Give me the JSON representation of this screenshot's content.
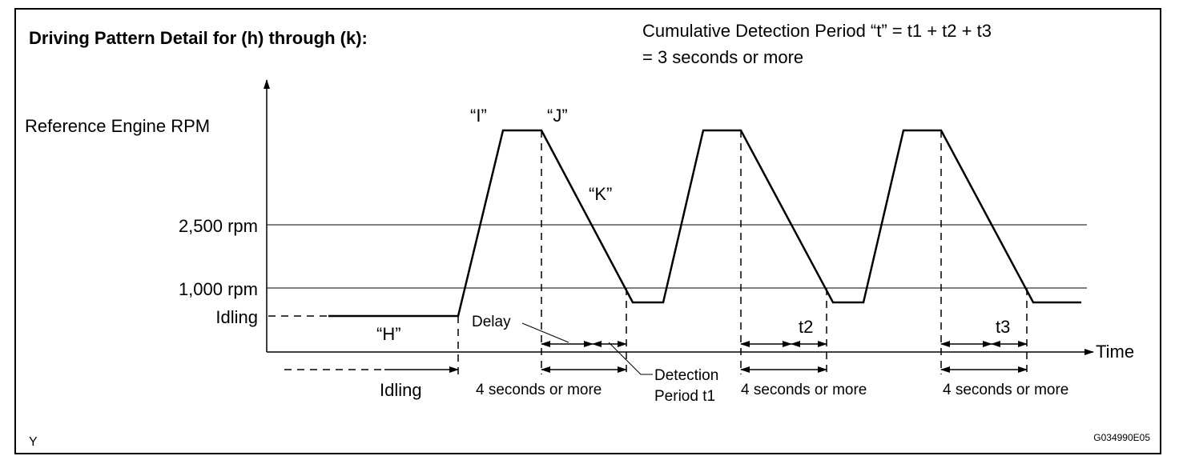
{
  "title": "Driving Pattern Detail for (h) through (k):",
  "note": [
    "Cumulative Detection Period “t” = t1 + t2 + t3",
    "= 3 seconds or more"
  ],
  "y_labels": [
    "Reference Engine RPM",
    "2,500 rpm",
    "1,000 rpm",
    "Idling"
  ],
  "x_label": "Time",
  "point_labels": [
    "“H”",
    "“I”",
    "“J”",
    "“K”"
  ],
  "idling_label": "Idling",
  "delay_label": "Delay",
  "detection_label": [
    "Detection",
    "Period t1"
  ],
  "period_labels": [
    "4 seconds or more",
    "4 seconds or more",
    "4 seconds or more"
  ],
  "t_labels": [
    "t2",
    "t3"
  ],
  "corner": "Y",
  "code": "G034990E05"
}
